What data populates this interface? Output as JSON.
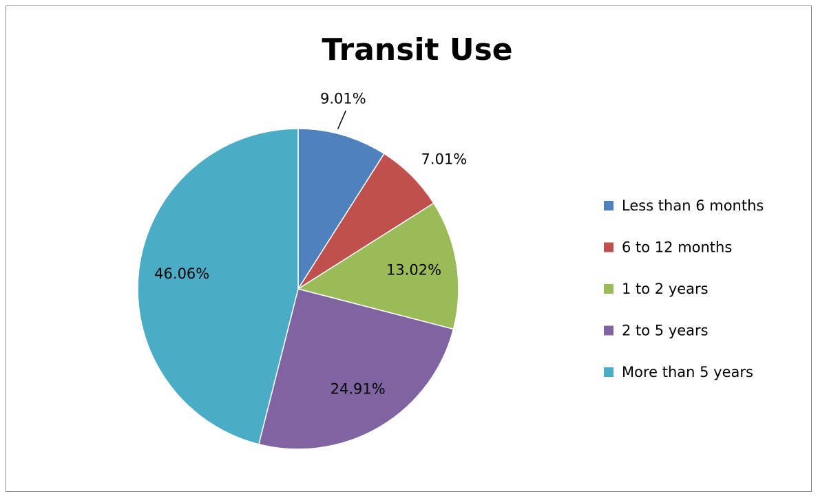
{
  "chart_data": {
    "type": "pie",
    "title": "Transit Use",
    "categories": [
      "Less than 6 months",
      "6 to 12 months",
      "1 to 2 years",
      "2 to 5 years",
      "More than 5 years"
    ],
    "values": [
      9.01,
      7.01,
      13.02,
      24.91,
      46.06
    ],
    "value_labels": [
      "9.01%",
      "7.01%",
      "13.02%",
      "24.91%",
      "46.06%"
    ],
    "colors": [
      "#4f81bd",
      "#c0504d",
      "#9bbb59",
      "#8064a2",
      "#4bacc6"
    ],
    "legend": "right"
  }
}
